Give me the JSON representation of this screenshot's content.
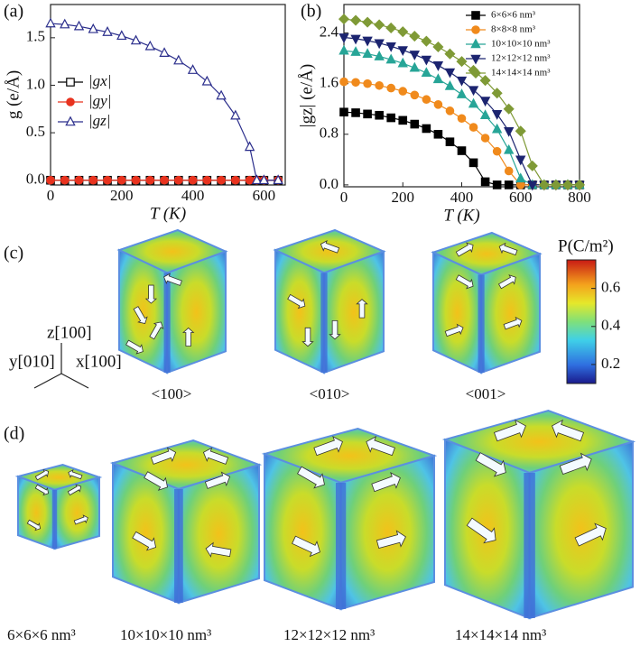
{
  "panels": [
    "(a)",
    "(b)",
    "(c)",
    "(d)"
  ],
  "chart_data": [
    {
      "type": "line",
      "xlabel": "T (K)",
      "ylabel": "g (e/Å)",
      "legend": "lower left",
      "x": [
        0,
        40,
        80,
        120,
        160,
        200,
        240,
        280,
        320,
        360,
        400,
        440,
        480,
        520,
        560,
        580,
        600,
        640
      ],
      "series": [
        {
          "name": "|gx|",
          "color": "#000000",
          "marker": "square-open",
          "values": [
            0,
            0,
            0,
            0,
            0,
            0,
            0,
            0,
            0,
            0,
            0,
            0,
            0,
            0,
            0,
            0,
            0,
            0
          ]
        },
        {
          "name": "|gy|",
          "color": "#e8331f",
          "marker": "circle",
          "values": [
            0,
            0,
            0,
            0,
            0,
            0,
            0,
            0,
            0,
            0,
            0,
            0,
            0,
            0,
            0,
            0,
            0,
            0
          ]
        },
        {
          "name": "|gz|",
          "color": "#2b2e8c",
          "marker": "triangle-open",
          "values": [
            1.65,
            1.64,
            1.62,
            1.59,
            1.56,
            1.52,
            1.47,
            1.41,
            1.34,
            1.26,
            1.16,
            1.04,
            0.89,
            0.68,
            0.35,
            0,
            0,
            0
          ]
        }
      ],
      "xlim": [
        0,
        660
      ],
      "ylim": [
        -0.05,
        1.85
      ],
      "xticks": [
        0,
        200,
        400,
        600
      ],
      "yticks": [
        {
          "value": 0,
          "label": "0.0"
        },
        {
          "value": 0.5,
          "label": "0.5"
        },
        {
          "value": 1,
          "label": "1.0"
        },
        {
          "value": 1.5,
          "label": "1.5"
        }
      ]
    },
    {
      "type": "line",
      "xlabel": "T (K)",
      "ylabel": "|gz| (e/Å)",
      "legend": "upper right",
      "x": [
        0,
        40,
        80,
        120,
        160,
        200,
        240,
        280,
        320,
        360,
        400,
        440,
        480,
        520,
        560,
        600,
        640,
        680,
        720,
        760,
        800
      ],
      "series": [
        {
          "name": "6×6×6 nm³",
          "color": "#000000",
          "marker": "square",
          "values": [
            1.15,
            1.14,
            1.12,
            1.1,
            1.06,
            1.02,
            0.96,
            0.89,
            0.8,
            0.68,
            0.54,
            0.35,
            0.05,
            0,
            0,
            0,
            0,
            0,
            0,
            0,
            0
          ]
        },
        {
          "name": "8×8×8 nm³",
          "color": "#f08a1c",
          "marker": "circle",
          "values": [
            1.63,
            1.62,
            1.6,
            1.57,
            1.53,
            1.48,
            1.42,
            1.35,
            1.27,
            1.17,
            1.05,
            0.91,
            0.74,
            0.53,
            0.22,
            0,
            0,
            0,
            0,
            0,
            0
          ]
        },
        {
          "name": "10×10×10 nm³",
          "color": "#27a597",
          "marker": "triangle",
          "values": [
            2.12,
            2.1,
            2.07,
            2.03,
            1.98,
            1.92,
            1.85,
            1.77,
            1.67,
            1.56,
            1.43,
            1.28,
            1.1,
            0.88,
            0.55,
            0.1,
            0,
            0,
            0,
            0,
            0
          ]
        },
        {
          "name": "12×12×12 nm³",
          "color": "#1c2470",
          "marker": "triangle-down",
          "values": [
            2.33,
            2.31,
            2.28,
            2.24,
            2.19,
            2.13,
            2.06,
            1.98,
            1.89,
            1.78,
            1.65,
            1.5,
            1.33,
            1.12,
            0.85,
            0.4,
            0,
            0,
            0,
            0,
            0
          ]
        },
        {
          "name": "14×14×14 nm³",
          "color": "#7f9a36",
          "marker": "diamond",
          "values": [
            2.62,
            2.6,
            2.57,
            2.53,
            2.48,
            2.42,
            2.35,
            2.27,
            2.18,
            2.07,
            1.95,
            1.81,
            1.65,
            1.45,
            1.2,
            0.85,
            0.3,
            0,
            0,
            0,
            0
          ]
        }
      ],
      "xlim": [
        0,
        800
      ],
      "ylim": [
        -0.03,
        2.85
      ],
      "xticks": [
        0,
        200,
        400,
        600,
        800
      ],
      "yticks": [
        {
          "value": 0,
          "label": "0.0"
        },
        {
          "value": 0.8,
          "label": "0.8"
        },
        {
          "value": 1.6,
          "label": "1.6"
        },
        {
          "value": 2.4,
          "label": "2.4"
        }
      ]
    }
  ],
  "colorbar": {
    "title": "P(C/m²)",
    "clim": [
      0.1,
      0.75
    ],
    "ticks": [
      0.2,
      0.4,
      0.6
    ]
  },
  "orientation_labels": [
    "<100>",
    "<010>",
    "<001>"
  ],
  "axes_labels": [
    "z[100]",
    "y[010]",
    "x[100]"
  ],
  "size_labels": [
    "6×6×6 nm³",
    "10×10×10 nm³",
    "12×12×12 nm³",
    "14×14×14 nm³"
  ]
}
